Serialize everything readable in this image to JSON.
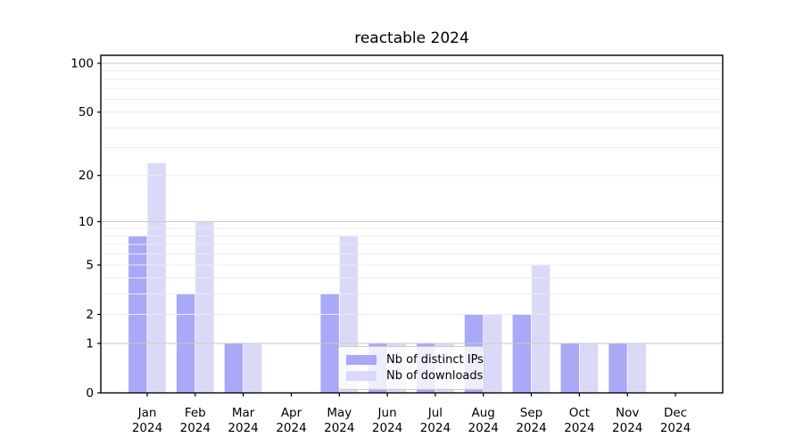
{
  "chart_data": {
    "type": "bar",
    "title": "reactable 2024",
    "categories": [
      "Jan 2024",
      "Feb 2024",
      "Mar 2024",
      "Apr 2024",
      "May 2024",
      "Jun 2024",
      "Jul 2024",
      "Aug 2024",
      "Sep 2024",
      "Oct 2024",
      "Nov 2024",
      "Dec 2024"
    ],
    "series": [
      {
        "name": "Nb of distinct IPs",
        "color": "#a9a9f7",
        "values": [
          8,
          3,
          1,
          0,
          3,
          1,
          1,
          2,
          2,
          1,
          1,
          0
        ]
      },
      {
        "name": "Nb of downloads",
        "color": "#dadaf8",
        "values": [
          24,
          10,
          1,
          0,
          8,
          1,
          1,
          2,
          5,
          1,
          1,
          0
        ]
      }
    ],
    "xlabel": "",
    "ylabel": "",
    "y_scale": "log1p",
    "y_ticks": [
      0,
      1,
      2,
      5,
      10,
      20,
      50,
      100
    ],
    "y_minor_gridlines": [
      2,
      3,
      4,
      5,
      6,
      7,
      8,
      9,
      20,
      30,
      40,
      50,
      60,
      70,
      80,
      90
    ],
    "y_major_gridlines": [
      1,
      10,
      100
    ],
    "ylim": [
      0,
      112
    ],
    "grid": true,
    "legend_position": "lower center",
    "colors": {
      "grid_major": "#c9c9c9",
      "grid_minor": "#ececec",
      "axis": "#000000",
      "text": "#000000",
      "legend_border": "#cccccc",
      "legend_bg": "rgba(255,255,255,0.8)"
    }
  }
}
